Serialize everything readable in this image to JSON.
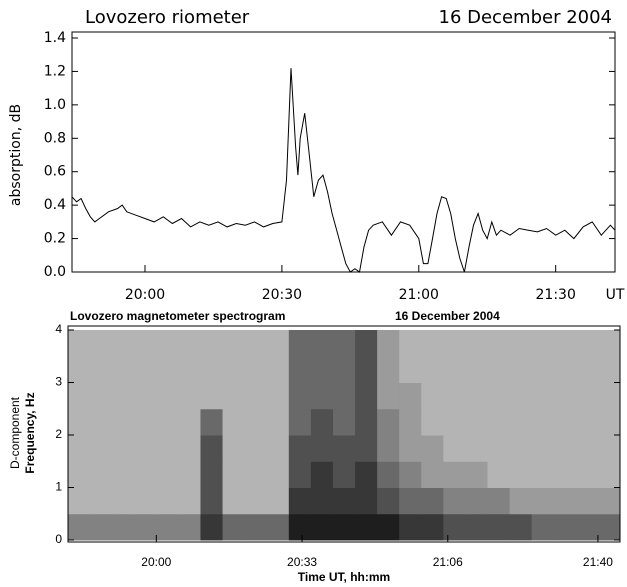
{
  "chart_data": [
    {
      "type": "line",
      "title": "Lovozero riometer",
      "subtitle": "16 December 2004",
      "y_label": "absorption, dB",
      "xlim": [
        1184,
        1303
      ],
      "ylim": [
        0,
        1.4
      ],
      "xticks": [
        {
          "value": 1200,
          "label": "20:00"
        },
        {
          "value": 1230,
          "label": "20:30"
        },
        {
          "value": 1260,
          "label": "21:00"
        },
        {
          "value": 1290,
          "label": "21:30"
        },
        {
          "value": 1303,
          "label": "UT"
        }
      ],
      "yticks": [
        {
          "value": 0,
          "label": "0.0"
        },
        0.2,
        0.4,
        0.6,
        0.8,
        {
          "value": 1,
          "label": "1.0"
        },
        1.2,
        1.4
      ],
      "color": "#000000",
      "x": [
        1184,
        1185,
        1186,
        1187,
        1188,
        1189,
        1190,
        1192,
        1194,
        1195,
        1196,
        1198,
        1200,
        1202,
        1204,
        1206,
        1208,
        1210,
        1212,
        1214,
        1216,
        1218,
        1220,
        1222,
        1224,
        1226,
        1228,
        1230,
        1231,
        1232,
        1233,
        1233.5,
        1234,
        1235,
        1236,
        1237,
        1238,
        1239,
        1240,
        1241,
        1242,
        1243,
        1244,
        1245,
        1246,
        1247,
        1248,
        1249,
        1250,
        1252,
        1254,
        1256,
        1258,
        1260,
        1261,
        1262,
        1263,
        1264,
        1265,
        1266,
        1267,
        1268,
        1269,
        1270,
        1271,
        1272,
        1273,
        1274,
        1275,
        1276,
        1277,
        1278,
        1280,
        1282,
        1284,
        1286,
        1288,
        1290,
        1292,
        1294,
        1296,
        1298,
        1300,
        1302,
        1303
      ],
      "values": [
        0.45,
        0.42,
        0.44,
        0.38,
        0.33,
        0.3,
        0.32,
        0.36,
        0.38,
        0.4,
        0.36,
        0.34,
        0.32,
        0.3,
        0.33,
        0.29,
        0.32,
        0.27,
        0.3,
        0.28,
        0.3,
        0.27,
        0.29,
        0.28,
        0.3,
        0.27,
        0.29,
        0.3,
        0.55,
        1.22,
        0.75,
        0.58,
        0.8,
        0.95,
        0.7,
        0.45,
        0.55,
        0.58,
        0.48,
        0.35,
        0.25,
        0.15,
        0.05,
        0,
        0.02,
        0,
        0.15,
        0.25,
        0.28,
        0.3,
        0.22,
        0.3,
        0.28,
        0.2,
        0.05,
        0.05,
        0.2,
        0.35,
        0.45,
        0.44,
        0.35,
        0.2,
        0.08,
        0,
        0.15,
        0.28,
        0.35,
        0.25,
        0.2,
        0.3,
        0.22,
        0.25,
        0.22,
        0.26,
        0.25,
        0.24,
        0.26,
        0.22,
        0.25,
        0.2,
        0.27,
        0.3,
        0.22,
        0.28,
        0.25
      ]
    },
    {
      "type": "heatmap",
      "title": "Lovozero magnetometer spectrogram",
      "subtitle": "16 December 2004",
      "y_label_top": "D-component",
      "y_label": "Frequency, Hz",
      "x_label": "Time UT, hh:mm",
      "xlim": [
        1180,
        1305
      ],
      "ylim": [
        0,
        4
      ],
      "xticks": [
        {
          "value": 1200,
          "label": "20:00"
        },
        {
          "value": 1233,
          "label": "20:33"
        },
        {
          "value": 1266,
          "label": "21:06"
        },
        {
          "value": 1300,
          "label": "21:40"
        }
      ],
      "yticks": [
        0,
        1,
        2,
        3,
        4
      ],
      "x_bins": [
        1180,
        1185,
        1190,
        1195,
        1200,
        1205,
        1210,
        1215,
        1220,
        1225,
        1230,
        1235,
        1240,
        1245,
        1250,
        1255,
        1260,
        1265,
        1270,
        1275,
        1280,
        1285,
        1290,
        1295,
        1300,
        1305
      ],
      "y_bins": [
        0,
        0.5,
        1,
        1.5,
        2,
        2.5,
        3,
        3.5,
        4
      ],
      "z": [
        [
          5,
          5,
          5,
          5,
          5,
          5,
          8,
          6,
          6,
          6,
          9,
          9,
          9,
          9,
          9,
          8,
          8,
          7,
          7,
          7,
          7,
          6,
          6,
          6,
          6
        ],
        [
          3,
          3,
          3,
          3,
          3,
          3,
          7,
          3,
          3,
          3,
          8,
          8,
          8,
          8,
          7,
          6,
          6,
          5,
          5,
          5,
          4,
          4,
          4,
          4,
          4
        ],
        [
          3,
          3,
          3,
          3,
          3,
          3,
          7,
          3,
          3,
          3,
          7,
          8,
          7,
          8,
          6,
          5,
          4,
          4,
          4,
          3,
          3,
          3,
          3,
          3,
          3
        ],
        [
          3,
          3,
          3,
          3,
          3,
          3,
          7,
          3,
          3,
          3,
          7,
          7,
          7,
          7,
          5,
          4,
          4,
          3,
          3,
          3,
          3,
          3,
          3,
          3,
          3
        ],
        [
          3,
          3,
          3,
          3,
          3,
          3,
          6,
          3,
          3,
          3,
          6,
          7,
          6,
          7,
          5,
          4,
          3,
          3,
          3,
          3,
          3,
          3,
          3,
          3,
          3
        ],
        [
          3,
          3,
          3,
          3,
          3,
          3,
          3,
          3,
          3,
          3,
          6,
          6,
          6,
          7,
          4,
          4,
          3,
          3,
          3,
          3,
          3,
          3,
          3,
          3,
          3
        ],
        [
          3,
          3,
          3,
          3,
          3,
          3,
          3,
          3,
          3,
          3,
          6,
          6,
          6,
          7,
          4,
          3,
          3,
          3,
          3,
          3,
          3,
          3,
          3,
          3,
          3
        ],
        [
          3,
          3,
          3,
          3,
          3,
          3,
          3,
          3,
          3,
          3,
          6,
          6,
          6,
          7,
          4,
          3,
          3,
          3,
          3,
          3,
          3,
          3,
          3,
          3,
          3
        ]
      ]
    }
  ]
}
